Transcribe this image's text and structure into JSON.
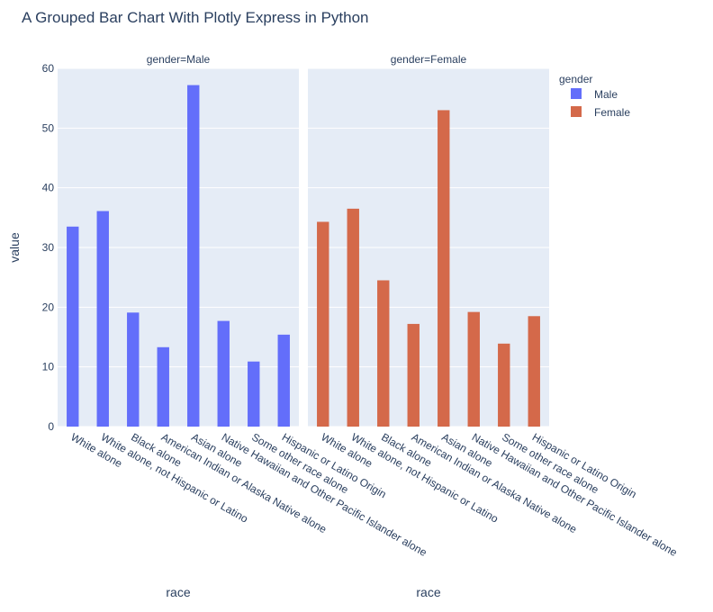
{
  "chart_data": {
    "type": "bar",
    "title": "A Grouped Bar Chart With Plotly Express in Python",
    "xlabel": "race",
    "ylabel": "value",
    "ylim": [
      0,
      60
    ],
    "yticks": [
      0,
      10,
      20,
      30,
      40,
      50,
      60
    ],
    "grid": true,
    "legend_title": "gender",
    "legend_position": "top-right",
    "categories": [
      "White alone",
      "White alone, not Hispanic or Latino",
      "Black alone",
      "American Indian or Alaska Native alone",
      "Asian alone",
      "Native Hawaiian and Other Pacific Islander alone",
      "Some other race alone",
      "Hispanic or Latino Origin"
    ],
    "facets": [
      {
        "label": "gender=Male",
        "series": "Male"
      },
      {
        "label": "gender=Female",
        "series": "Female"
      }
    ],
    "series": [
      {
        "name": "Male",
        "color": "#636efa",
        "values": [
          33.5,
          36.1,
          19.1,
          13.3,
          57.2,
          17.7,
          10.9,
          15.4
        ]
      },
      {
        "name": "Female",
        "color": "#d4694a",
        "values": [
          34.3,
          36.5,
          24.5,
          17.2,
          53.0,
          19.2,
          13.9,
          18.5
        ]
      }
    ]
  }
}
